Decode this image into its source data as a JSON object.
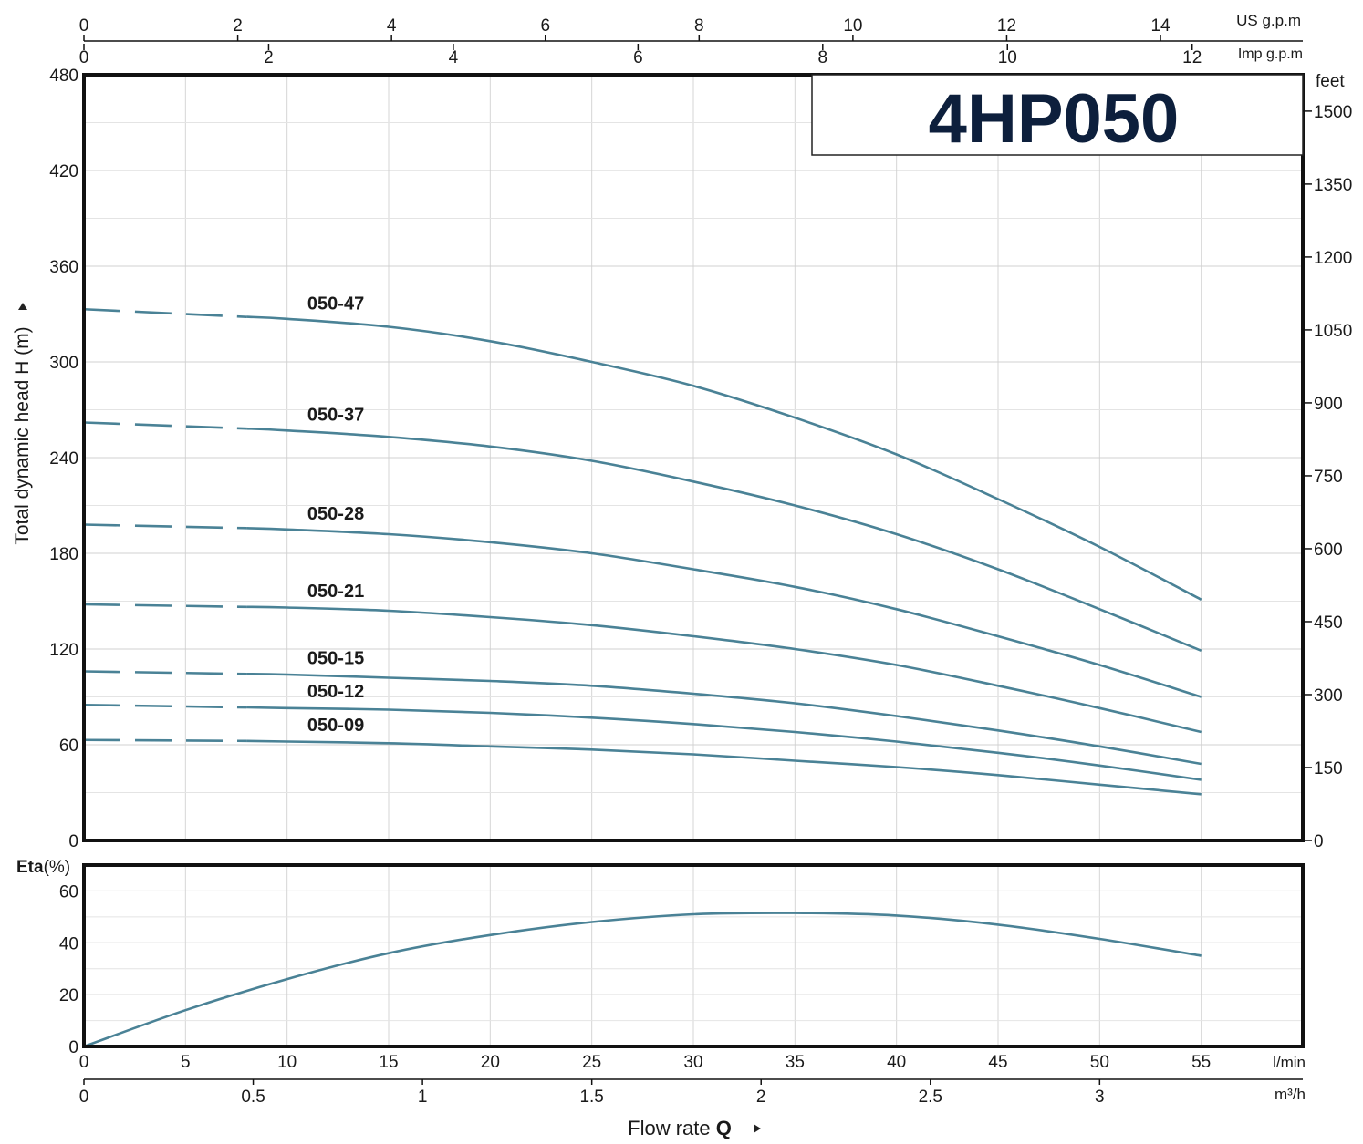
{
  "chart_data": [
    {
      "type": "line",
      "title": "4HP050",
      "ylabel": "Total dynamic head H (m)",
      "y2label": "feet",
      "xlabel": "Flow rate Q",
      "x_units": [
        "l/min",
        "m³/h",
        "US g.p.m",
        "Imp g.p.m"
      ],
      "xlim_lmin": [
        0,
        60
      ],
      "ylim": [
        0,
        480
      ],
      "y_ticks": [
        0,
        60,
        120,
        180,
        240,
        300,
        360,
        420,
        480
      ],
      "y2_ticks": [
        0,
        150,
        300,
        450,
        600,
        750,
        900,
        1050,
        1200,
        1350,
        1500
      ],
      "x_ticks_lmin": [
        0,
        5,
        10,
        15,
        20,
        25,
        30,
        35,
        40,
        45,
        50,
        55
      ],
      "x_ticks_m3h": [
        "0",
        "0.5",
        "1",
        "1.5",
        "2",
        "2.5",
        "3"
      ],
      "x_ticks_usgpm": [
        0,
        2,
        4,
        6,
        8,
        10,
        12,
        14
      ],
      "x_ticks_impgpm": [
        0,
        2,
        4,
        6,
        8,
        10,
        12
      ],
      "dashed_until_lmin": 8,
      "grid": true,
      "series": [
        {
          "name": "050-47",
          "x": [
            0,
            5,
            10,
            15,
            20,
            25,
            30,
            35,
            40,
            45,
            50,
            55
          ],
          "y": [
            333,
            330,
            327,
            322,
            313,
            300,
            285,
            265,
            242,
            214,
            184,
            151
          ]
        },
        {
          "name": "050-37",
          "x": [
            0,
            5,
            10,
            15,
            20,
            25,
            30,
            35,
            40,
            45,
            50,
            55
          ],
          "y": [
            262,
            260,
            257,
            253,
            247,
            238,
            225,
            210,
            192,
            170,
            145,
            119
          ]
        },
        {
          "name": "050-28",
          "x": [
            0,
            5,
            10,
            15,
            20,
            25,
            30,
            35,
            40,
            45,
            50,
            55
          ],
          "y": [
            198,
            197,
            195,
            192,
            187,
            180,
            170,
            159,
            145,
            128,
            110,
            90
          ]
        },
        {
          "name": "050-21",
          "x": [
            0,
            5,
            10,
            15,
            20,
            25,
            30,
            35,
            40,
            45,
            50,
            55
          ],
          "y": [
            148,
            147,
            146,
            144,
            140,
            135,
            128,
            120,
            110,
            97,
            83,
            68
          ]
        },
        {
          "name": "050-15",
          "x": [
            0,
            5,
            10,
            15,
            20,
            25,
            30,
            35,
            40,
            45,
            50,
            55
          ],
          "y": [
            106,
            105,
            104,
            102,
            100,
            97,
            92,
            86,
            78,
            69,
            59,
            48
          ]
        },
        {
          "name": "050-12",
          "x": [
            0,
            5,
            10,
            15,
            20,
            25,
            30,
            35,
            40,
            45,
            50,
            55
          ],
          "y": [
            85,
            84,
            83,
            82,
            80,
            77,
            73,
            68,
            62,
            55,
            47,
            38
          ]
        },
        {
          "name": "050-09",
          "x": [
            0,
            5,
            10,
            15,
            20,
            25,
            30,
            35,
            40,
            45,
            50,
            55
          ],
          "y": [
            63,
            63,
            62,
            61,
            59,
            57,
            54,
            50,
            46,
            41,
            35,
            29
          ]
        }
      ]
    },
    {
      "type": "line",
      "ylabel": "Eta(%)",
      "ylim": [
        0,
        70
      ],
      "y_ticks": [
        0,
        20,
        40,
        60
      ],
      "grid": true,
      "series": [
        {
          "x": [
            0,
            5,
            10,
            15,
            20,
            25,
            30,
            35,
            40,
            45,
            50,
            55
          ],
          "y": [
            0,
            14,
            26,
            36,
            43,
            48,
            51,
            51.5,
            50.5,
            47,
            41.5,
            35
          ]
        }
      ]
    }
  ]
}
